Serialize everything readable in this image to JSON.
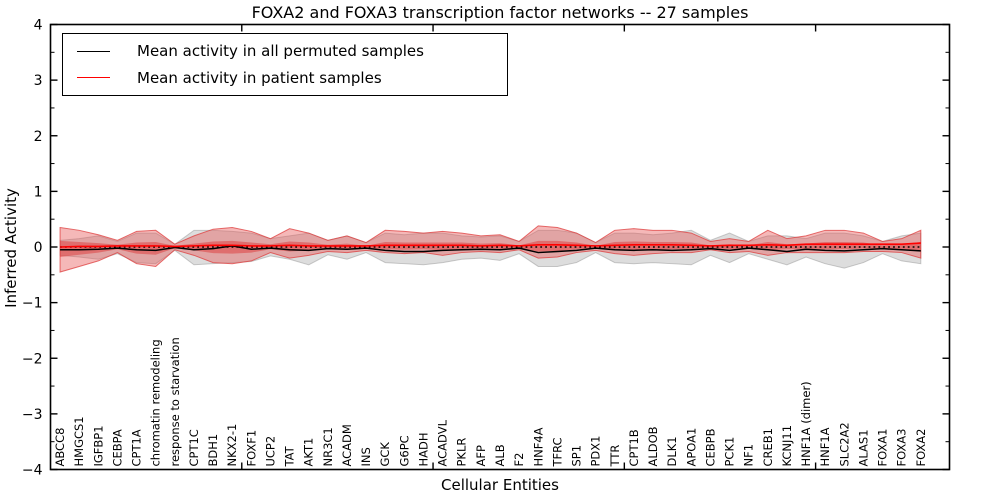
{
  "figure": {
    "title": "FOXA2 and FOXA3 transcription factor networks -- 27 samples",
    "background": "#ffffff"
  },
  "legend": {
    "entries": [
      {
        "label": "Mean activity in all permuted samples",
        "color": "#000000"
      },
      {
        "label": "Mean activity in patient samples",
        "color": "#ff0000"
      }
    ]
  },
  "colors": {
    "permuted_line": "#000000",
    "patient_line": "#ff0000",
    "permuted_band_fill": "rgba(150,150,150,0.32)",
    "permuted_band_edge": "rgba(140,140,140,0.45)",
    "patient_band_fill": "rgba(232,85,85,0.42)",
    "patient_band_edge": "rgba(222,60,60,0.75)",
    "patient_inner_band_fill": "rgba(222,55,55,0.50)",
    "axis": "#000000"
  },
  "chart_data": {
    "type": "line",
    "title": "FOXA2 and FOXA3 transcription factor networks -- 27 samples",
    "xlabel": "Cellular Entities",
    "ylabel": "Inferred Activity",
    "ylim": [
      -4,
      4
    ],
    "xlim": [
      0,
      47
    ],
    "grid": false,
    "legend_position": "upper left",
    "y_major_ticks": [
      -4,
      -3,
      -2,
      -1,
      0,
      1,
      2,
      3,
      4
    ],
    "y_minor_step": 0.5,
    "x_major_ticks": [
      10,
      20,
      30,
      40
    ],
    "zero_line": {
      "value": 0,
      "style": "dotted",
      "color": "#000000"
    },
    "categories": [
      "ABCC8",
      "HMGCS1",
      "IGFBP1",
      "CEBPA",
      "CPT1A",
      "chromatin remodeling",
      "response to starvation",
      "CPT1C",
      "BDH1",
      "NKX2-1",
      "FOXF1",
      "UCP2",
      "TAT",
      "AKT1",
      "NR3C1",
      "ACADM",
      "INS",
      "GCK",
      "G6PC",
      "HADH",
      "ACADVL",
      "PKLR",
      "AFP",
      "ALB",
      "F2",
      "HNF4A",
      "TFRC",
      "SP1",
      "PDX1",
      "TTR",
      "CPT1B",
      "ALDOB",
      "DLK1",
      "APOA1",
      "CEBPB",
      "PCK1",
      "NF1",
      "CREB1",
      "KCNJ11",
      "HNF1A (dimer)",
      "HNF1A",
      "SLC2A2",
      "ALAS1",
      "FOXA1",
      "FOXA3",
      "FOXA2"
    ],
    "series": [
      {
        "name": "Mean activity in all permuted samples",
        "role": "permuted_mean",
        "color": "#000000",
        "values": [
          -0.05,
          -0.05,
          -0.04,
          -0.02,
          -0.05,
          -0.06,
          -0.01,
          -0.05,
          -0.03,
          0.02,
          -0.04,
          -0.02,
          -0.05,
          -0.06,
          -0.03,
          -0.04,
          -0.02,
          -0.06,
          -0.08,
          -0.08,
          -0.06,
          -0.05,
          -0.04,
          -0.05,
          -0.02,
          -0.1,
          -0.08,
          -0.06,
          -0.02,
          -0.05,
          -0.06,
          -0.05,
          -0.06,
          -0.05,
          -0.03,
          -0.06,
          -0.02,
          -0.05,
          -0.08,
          -0.04,
          -0.06,
          -0.07,
          -0.05,
          -0.03,
          -0.05,
          -0.07
        ]
      },
      {
        "name": "Mean activity in patient samples",
        "role": "patient_mean",
        "color": "#ff0000",
        "values": [
          0.0,
          0.01,
          0.01,
          0.02,
          0.02,
          0.02,
          0.01,
          0.02,
          0.03,
          0.03,
          0.02,
          0.02,
          0.03,
          0.02,
          0.02,
          0.02,
          0.02,
          0.03,
          0.03,
          0.03,
          0.03,
          0.03,
          0.02,
          0.03,
          0.02,
          0.04,
          0.04,
          0.03,
          0.02,
          0.03,
          0.04,
          0.04,
          0.04,
          0.03,
          0.02,
          0.03,
          0.03,
          0.04,
          0.03,
          0.05,
          0.05,
          0.05,
          0.05,
          0.05,
          0.05,
          0.07
        ]
      },
      {
        "name": "Permuted samples activity band (std)",
        "role": "permuted_band",
        "upper": [
          0.12,
          0.15,
          0.2,
          0.1,
          0.25,
          0.25,
          0.05,
          0.3,
          0.3,
          0.28,
          0.25,
          0.15,
          0.2,
          0.25,
          0.12,
          0.2,
          0.08,
          0.25,
          0.22,
          0.25,
          0.25,
          0.2,
          0.18,
          0.2,
          0.1,
          0.3,
          0.3,
          0.25,
          0.08,
          0.25,
          0.25,
          0.22,
          0.25,
          0.3,
          0.12,
          0.25,
          0.1,
          0.2,
          0.2,
          0.15,
          0.25,
          0.25,
          0.2,
          0.1,
          0.2,
          0.25
        ],
        "lower": [
          -0.15,
          -0.18,
          -0.22,
          -0.12,
          -0.28,
          -0.3,
          -0.06,
          -0.32,
          -0.3,
          -0.28,
          -0.26,
          -0.16,
          -0.22,
          -0.32,
          -0.14,
          -0.22,
          -0.1,
          -0.28,
          -0.3,
          -0.32,
          -0.28,
          -0.22,
          -0.2,
          -0.24,
          -0.12,
          -0.35,
          -0.35,
          -0.28,
          -0.1,
          -0.28,
          -0.3,
          -0.28,
          -0.3,
          -0.32,
          -0.15,
          -0.28,
          -0.12,
          -0.22,
          -0.32,
          -0.18,
          -0.3,
          -0.38,
          -0.28,
          -0.12,
          -0.25,
          -0.3
        ]
      },
      {
        "name": "Patient samples activity band (std)",
        "role": "patient_band",
        "upper": [
          0.35,
          0.3,
          0.22,
          0.12,
          0.28,
          0.3,
          0.05,
          0.2,
          0.32,
          0.35,
          0.28,
          0.15,
          0.33,
          0.25,
          0.12,
          0.2,
          0.08,
          0.3,
          0.28,
          0.25,
          0.28,
          0.25,
          0.2,
          0.22,
          0.1,
          0.38,
          0.35,
          0.25,
          0.08,
          0.3,
          0.33,
          0.3,
          0.3,
          0.25,
          0.1,
          0.15,
          0.1,
          0.3,
          0.15,
          0.2,
          0.3,
          0.3,
          0.25,
          0.1,
          0.15,
          0.3
        ],
        "lower": [
          -0.45,
          -0.35,
          -0.25,
          -0.1,
          -0.3,
          -0.35,
          -0.05,
          -0.15,
          -0.28,
          -0.3,
          -0.25,
          -0.1,
          -0.2,
          -0.15,
          -0.08,
          -0.1,
          -0.06,
          -0.1,
          -0.12,
          -0.1,
          -0.15,
          -0.1,
          -0.08,
          -0.1,
          -0.05,
          -0.2,
          -0.18,
          -0.1,
          -0.06,
          -0.12,
          -0.15,
          -0.12,
          -0.1,
          -0.1,
          -0.05,
          -0.1,
          -0.08,
          -0.15,
          -0.1,
          -0.1,
          -0.1,
          -0.1,
          -0.08,
          -0.08,
          -0.1,
          -0.2
        ]
      },
      {
        "name": "Patient samples activity band (sem)",
        "role": "patient_inner_band",
        "upper": [
          0.11,
          0.09,
          0.07,
          0.04,
          0.08,
          0.09,
          0.02,
          0.06,
          0.1,
          0.11,
          0.08,
          0.05,
          0.1,
          0.08,
          0.04,
          0.06,
          0.02,
          0.09,
          0.08,
          0.08,
          0.08,
          0.08,
          0.06,
          0.07,
          0.03,
          0.11,
          0.11,
          0.08,
          0.02,
          0.09,
          0.1,
          0.09,
          0.09,
          0.08,
          0.03,
          0.05,
          0.03,
          0.09,
          0.05,
          0.06,
          0.09,
          0.09,
          0.08,
          0.03,
          0.05,
          0.09
        ],
        "lower": [
          -0.18,
          -0.14,
          -0.1,
          -0.04,
          -0.12,
          -0.14,
          -0.02,
          -0.06,
          -0.11,
          -0.12,
          -0.1,
          -0.04,
          -0.08,
          -0.06,
          -0.03,
          -0.04,
          -0.02,
          -0.04,
          -0.05,
          -0.04,
          -0.06,
          -0.04,
          -0.03,
          -0.04,
          -0.02,
          -0.08,
          -0.07,
          -0.04,
          -0.02,
          -0.05,
          -0.06,
          -0.05,
          -0.04,
          -0.04,
          -0.02,
          -0.04,
          -0.03,
          -0.06,
          -0.04,
          -0.04,
          -0.04,
          -0.04,
          -0.03,
          -0.03,
          -0.04,
          -0.08
        ]
      }
    ]
  }
}
